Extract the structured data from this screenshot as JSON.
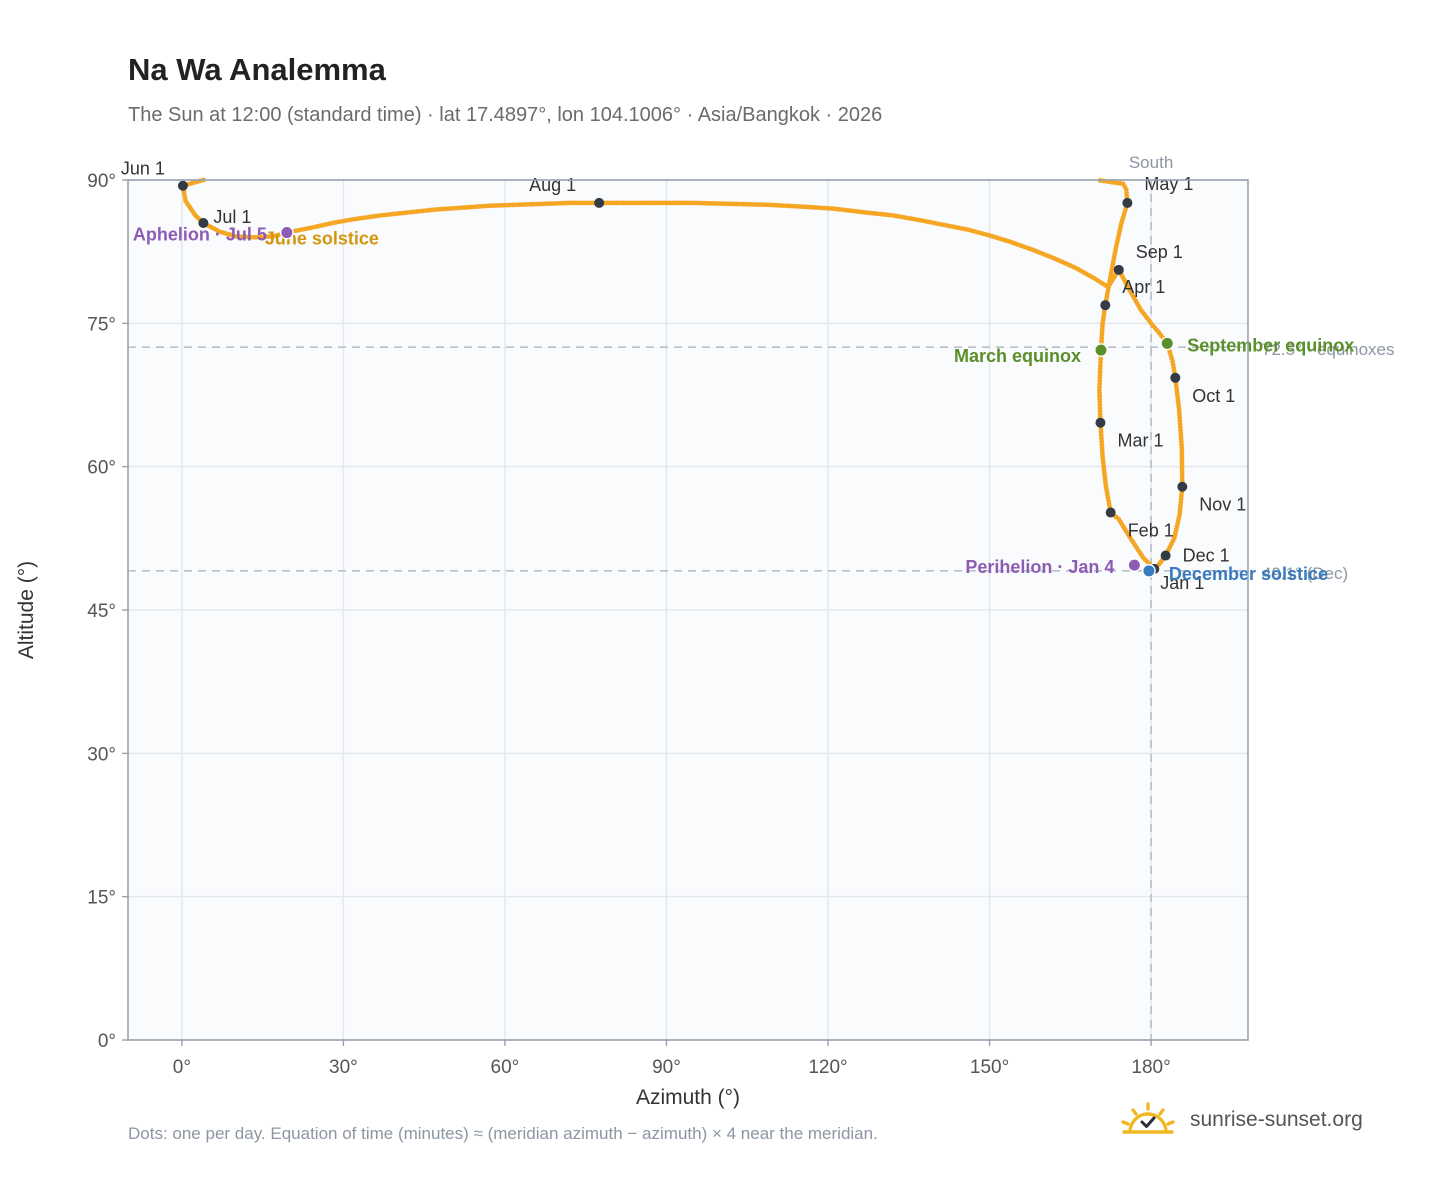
{
  "title": "Na Wa Analemma",
  "subtitle": "The Sun at 12:00 (standard time) · lat 17.4897°, lon 104.1006° · Asia/Bangkok · 2026",
  "footnote": "Dots: one per day. Equation of time (minutes) ≈ (meridian azimuth − azimuth) × 4 near the meridian.",
  "brand": {
    "name": "sunrise-sunset.org",
    "icon": "sun-logo-icon",
    "color": "#f2b824"
  },
  "chart_data": {
    "type": "scatter",
    "xlabel": "Azimuth (°)",
    "ylabel": "Altitude (°)",
    "xlim": [
      -10,
      198
    ],
    "ylim": [
      0,
      90
    ],
    "xticks": [
      0,
      30,
      60,
      90,
      120,
      150,
      180
    ],
    "yticks": [
      0,
      15,
      30,
      45,
      60,
      75,
      90
    ],
    "tick_suffix": "°",
    "grid": true,
    "colors": {
      "path": "#f5a623",
      "month": "#333b45",
      "equinox": "#5a8f29",
      "december": "#3a7abf",
      "june": "#d4960f",
      "apsis": "#8d5cb5",
      "reference": "#b7c0cc",
      "plot_bg": "#f9fbfd",
      "frame": "#9aa3ae"
    },
    "reference_lines": [
      {
        "axis": "x",
        "value": 180,
        "label": "South"
      },
      {
        "axis": "y",
        "value": 72.5,
        "label": "72.5° · equinoxes"
      },
      {
        "axis": "y",
        "value": 49.1,
        "label": "49.1° (Dec)"
      }
    ],
    "months": [
      {
        "label": "Jan 1",
        "az": 180.6,
        "alt": 49.3
      },
      {
        "label": "Feb 1",
        "az": 172.5,
        "alt": 55.2
      },
      {
        "label": "Mar 1",
        "az": 170.6,
        "alt": 64.6
      },
      {
        "label": "Apr 1",
        "az": 171.5,
        "alt": 76.9
      },
      {
        "label": "May 1",
        "az": 175.6,
        "alt": 87.6
      },
      {
        "label": "Jun 1",
        "az": 0.2,
        "alt": 89.4
      },
      {
        "label": "Jul 1",
        "az": 4.0,
        "alt": 85.5
      },
      {
        "label": "Aug 1",
        "az": 77.5,
        "alt": 87.6
      },
      {
        "label": "Sep 1",
        "az": 174.0,
        "alt": 80.6
      },
      {
        "label": "Oct 1",
        "az": 184.5,
        "alt": 69.3
      },
      {
        "label": "Nov 1",
        "az": 185.8,
        "alt": 57.9
      },
      {
        "label": "Dec 1",
        "az": 182.7,
        "alt": 50.7
      }
    ],
    "events": [
      {
        "label": "March equinox",
        "az": 170.7,
        "alt": 72.2,
        "kind": "equinox"
      },
      {
        "label": "September equinox",
        "az": 183.0,
        "alt": 72.9,
        "kind": "equinox"
      },
      {
        "label": "December solstice",
        "az": 179.6,
        "alt": 49.1,
        "kind": "december"
      },
      {
        "label": "June solstice",
        "az": 19.5,
        "alt": 84.5,
        "kind": "june"
      },
      {
        "label": "Perihelion · Jan 4",
        "az": 176.9,
        "alt": 49.7,
        "kind": "apsis"
      },
      {
        "label": "Aphelion · Jul 5",
        "az": 19.5,
        "alt": 84.5,
        "kind": "apsis"
      }
    ],
    "path": [
      [
        180.6,
        49.3
      ],
      [
        178.5,
        50.5
      ],
      [
        176.3,
        52.4
      ],
      [
        174.0,
        54.5
      ],
      [
        172.5,
        55.2
      ],
      [
        171.6,
        58.0
      ],
      [
        171.0,
        61.0
      ],
      [
        170.6,
        64.6
      ],
      [
        170.4,
        68.0
      ],
      [
        170.7,
        72.2
      ],
      [
        171.0,
        75.0
      ],
      [
        171.5,
        76.9
      ],
      [
        172.5,
        80.0
      ],
      [
        173.5,
        83.0
      ],
      [
        174.5,
        85.5
      ],
      [
        175.6,
        87.6
      ],
      [
        175.4,
        89.0
      ],
      [
        174.8,
        89.6
      ],
      [
        170.0,
        90.0
      ],
      [
        4.0,
        90.0
      ],
      [
        0.2,
        89.4
      ],
      [
        0.7,
        87.8
      ],
      [
        2.5,
        86.3
      ],
      [
        4.0,
        85.5
      ],
      [
        7.0,
        84.6
      ],
      [
        10.0,
        84.1
      ],
      [
        13.5,
        84.0
      ],
      [
        17.0,
        84.1
      ],
      [
        19.5,
        84.5
      ],
      [
        24.0,
        85.0
      ],
      [
        28.0,
        85.5
      ],
      [
        32.0,
        85.9
      ],
      [
        37.0,
        86.3
      ],
      [
        42.0,
        86.6
      ],
      [
        47.0,
        86.9
      ],
      [
        52.0,
        87.1
      ],
      [
        57.0,
        87.3
      ],
      [
        62.0,
        87.4
      ],
      [
        67.0,
        87.5
      ],
      [
        72.0,
        87.6
      ],
      [
        77.5,
        87.6
      ],
      [
        83.0,
        87.6
      ],
      [
        89.0,
        87.6
      ],
      [
        95.0,
        87.6
      ],
      [
        102.0,
        87.5
      ],
      [
        109.0,
        87.4
      ],
      [
        115.5,
        87.2
      ],
      [
        121.0,
        87.0
      ],
      [
        127.0,
        86.6
      ],
      [
        132.0,
        86.3
      ],
      [
        137.0,
        85.8
      ],
      [
        141.5,
        85.3
      ],
      [
        146.0,
        84.8
      ],
      [
        150.0,
        84.2
      ],
      [
        154.0,
        83.5
      ],
      [
        158.0,
        82.7
      ],
      [
        162.0,
        81.8
      ],
      [
        166.0,
        80.8
      ],
      [
        169.5,
        79.7
      ],
      [
        172.0,
        78.8
      ],
      [
        174.0,
        80.6
      ],
      [
        176.0,
        78.5
      ],
      [
        178.0,
        76.5
      ],
      [
        180.0,
        75.0
      ],
      [
        181.5,
        74.0
      ],
      [
        183.0,
        72.9
      ],
      [
        184.0,
        71.0
      ],
      [
        184.5,
        69.3
      ],
      [
        185.2,
        66.0
      ],
      [
        185.7,
        62.0
      ],
      [
        185.8,
        57.9
      ],
      [
        185.3,
        55.0
      ],
      [
        184.3,
        52.5
      ],
      [
        182.7,
        50.7
      ],
      [
        181.5,
        49.8
      ],
      [
        180.6,
        49.3
      ]
    ]
  }
}
